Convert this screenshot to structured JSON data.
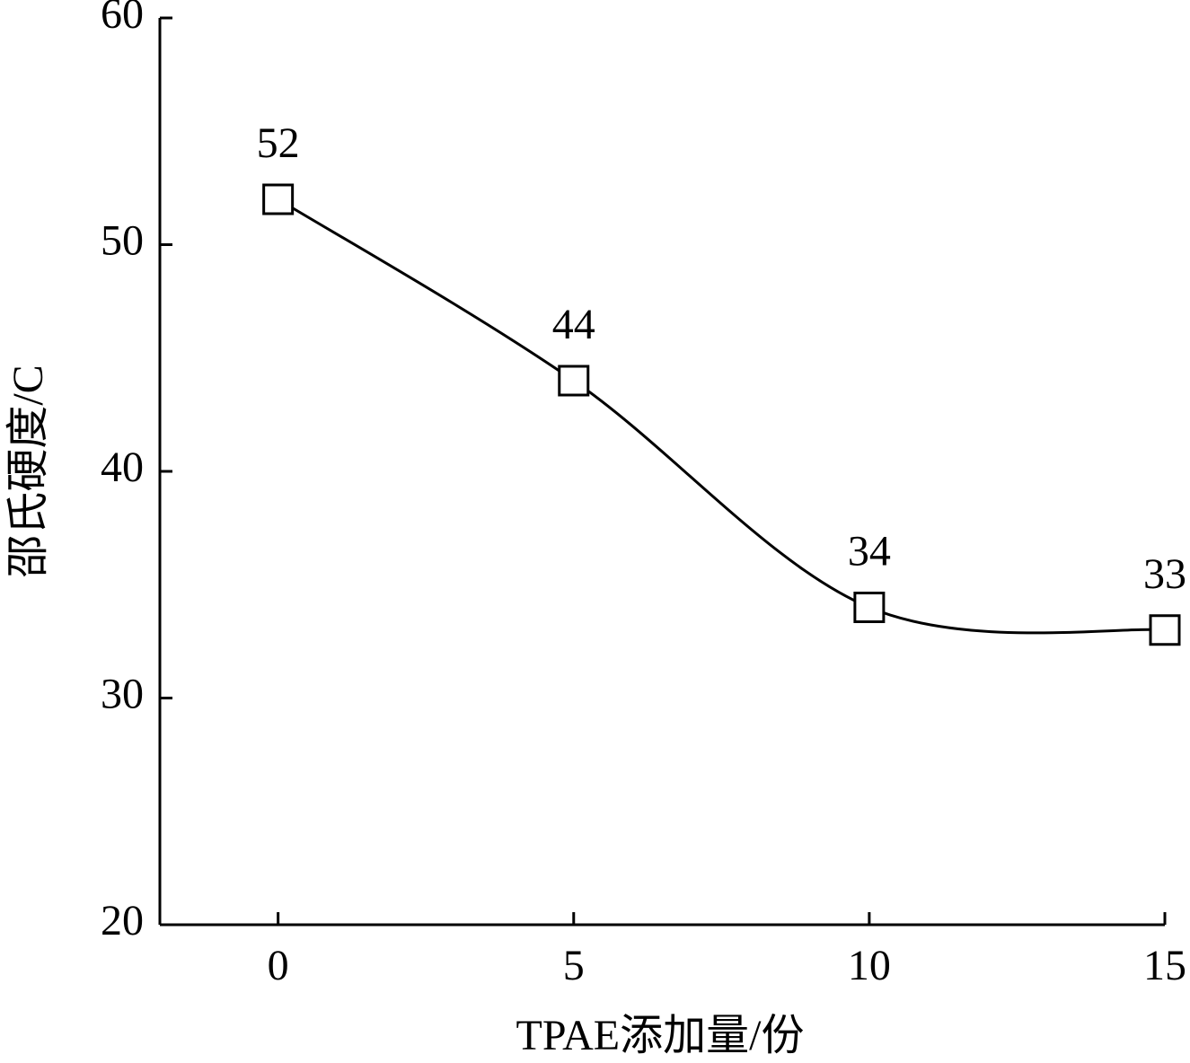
{
  "chart_data": {
    "type": "line",
    "x_label": "TPAE添加量/份",
    "y_label": "邵氏硬度/C",
    "x": [
      0,
      5,
      10,
      15
    ],
    "values": [
      52,
      44,
      34,
      33
    ],
    "color": "#000000",
    "marker": "square",
    "smooth": true,
    "xlim": [
      -2,
      15
    ],
    "xticks": [
      0,
      5,
      10,
      15
    ],
    "ylim": [
      20,
      60
    ],
    "yticks": [
      20,
      30,
      40,
      50,
      60
    ]
  }
}
